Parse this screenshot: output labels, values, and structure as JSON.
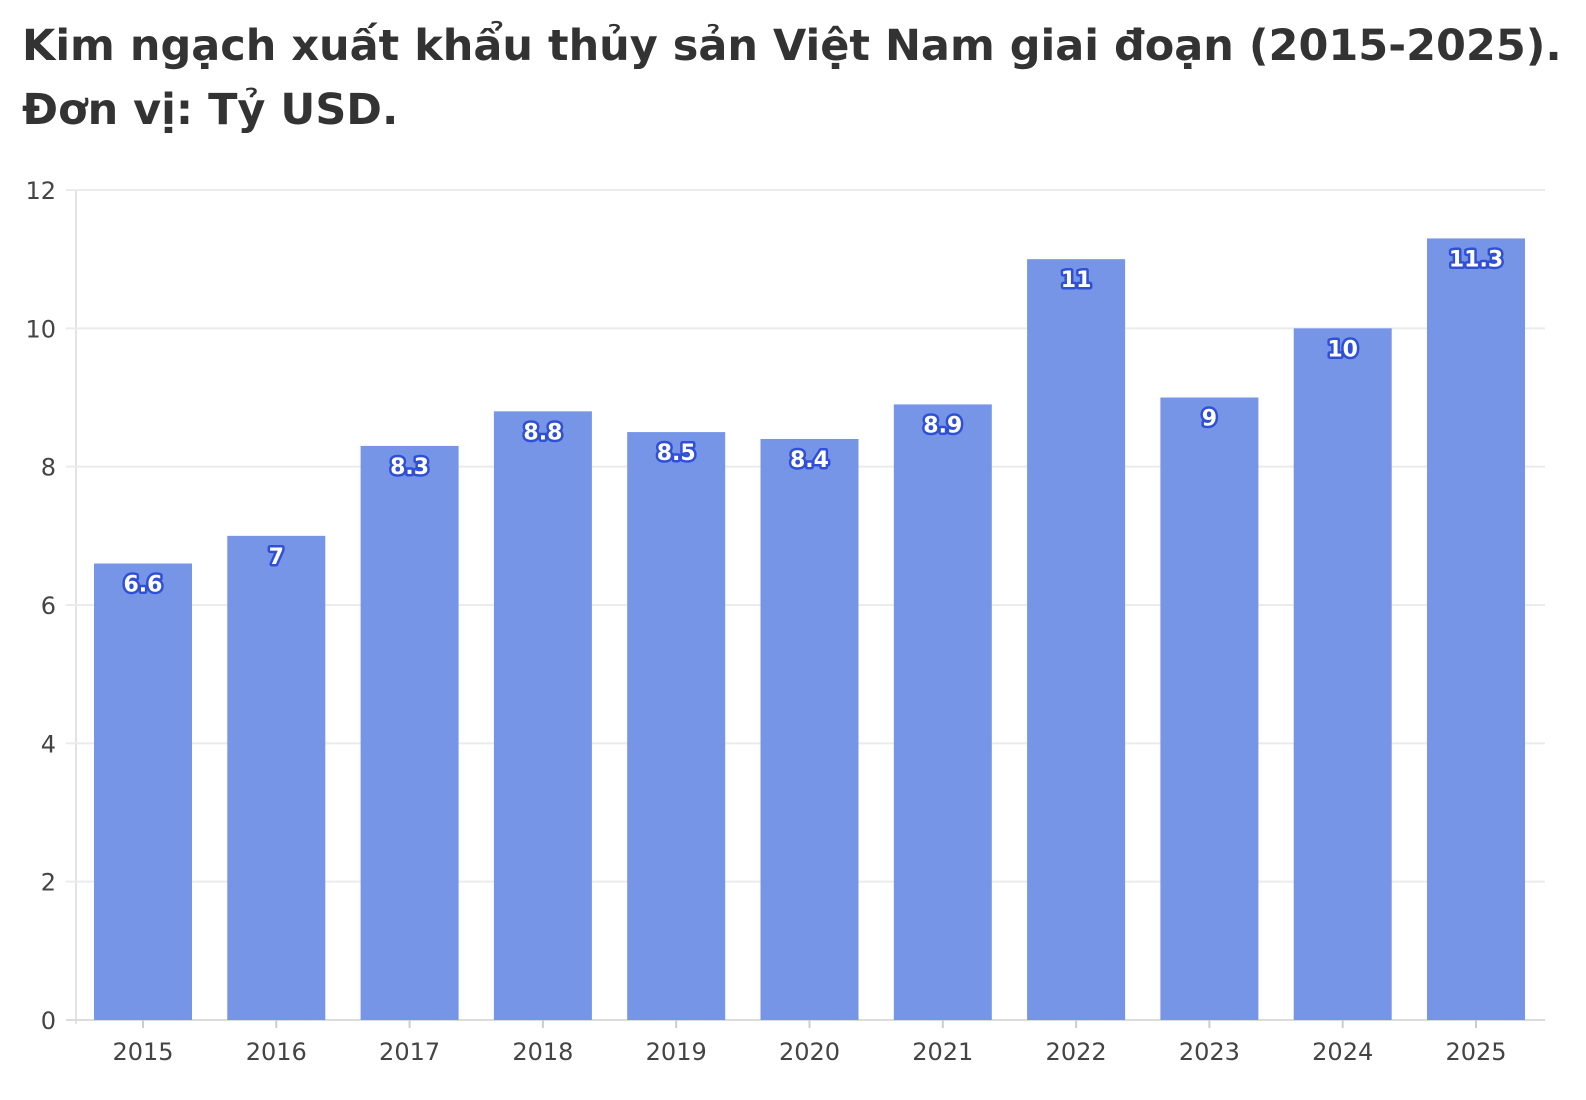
{
  "chart_data": {
    "type": "bar",
    "title_line1": "Kim ngạch xuất khẩu thủy sản Việt Nam giai đoạn (2015-2025).",
    "title_line2": "Đơn vị: Tỷ USD.",
    "categories": [
      "2015",
      "2016",
      "2017",
      "2018",
      "2019",
      "2020",
      "2021",
      "2022",
      "2023",
      "2024",
      "2025"
    ],
    "values": [
      6.6,
      7,
      8.3,
      8.8,
      8.5,
      8.4,
      8.9,
      11,
      9,
      10,
      11.3
    ],
    "data_labels": [
      "6.6",
      "7",
      "8.3",
      "8.8",
      "8.5",
      "8.4",
      "8.9",
      "11",
      "9",
      "10",
      "11.3"
    ],
    "ylim": [
      0,
      12
    ],
    "yticks": [
      0,
      2,
      4,
      6,
      8,
      10,
      12
    ],
    "grid": true,
    "bar_color": "#7695e6",
    "label_outline_color": "#2f4fd6"
  }
}
